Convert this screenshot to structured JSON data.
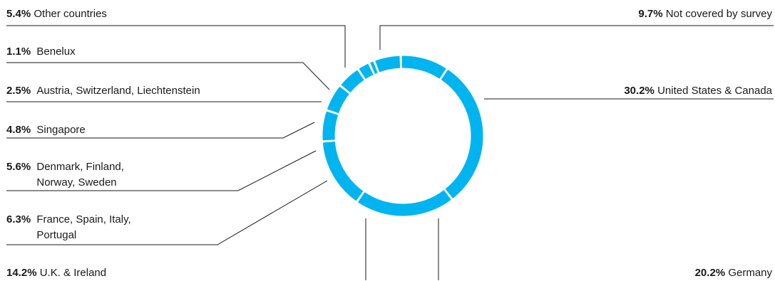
{
  "chart_data": {
    "type": "pie",
    "style": "donut",
    "ring_color": "#00b4f0",
    "title": "",
    "slices": [
      {
        "label": "Not covered by survey",
        "value": 9.7,
        "value_label": "9.7%"
      },
      {
        "label": "United States & Canada",
        "value": 30.2,
        "value_label": "30.2%"
      },
      {
        "label": "Germany",
        "value": 20.2,
        "value_label": "20.2%"
      },
      {
        "label": "U.K. & Ireland",
        "value": 14.2,
        "value_label": "14.2%"
      },
      {
        "label": "France, Spain, Italy, Portugal",
        "lines": [
          "France, Spain, Italy,",
          "Portugal"
        ],
        "value": 6.3,
        "value_label": "6.3%"
      },
      {
        "label": "Denmark, Finland, Norway, Sweden",
        "lines": [
          "Denmark, Finland,",
          "Norway, Sweden"
        ],
        "value": 5.6,
        "value_label": "5.6%"
      },
      {
        "label": "Singapore",
        "value": 4.8,
        "value_label": "4.8%"
      },
      {
        "label": "Austria, Switzerland, Liechtenstein",
        "value": 2.5,
        "value_label": "2.5%"
      },
      {
        "label": "Benelux",
        "value": 1.1,
        "value_label": "1.1%"
      },
      {
        "label": "Other countries",
        "value": 5.4,
        "value_label": "5.4%"
      }
    ]
  }
}
